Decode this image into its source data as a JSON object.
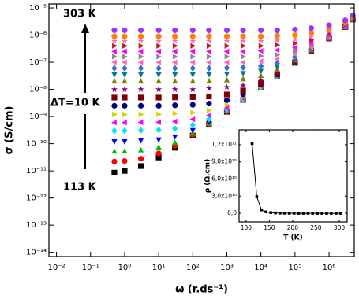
{
  "chart_data": [
    {
      "type": "scatter",
      "xscale": "log",
      "yscale": "log",
      "xlabel": "ω (r.ds⁻¹)",
      "ylabel": "σ (S/cm)",
      "annotations": [
        "303 K",
        "ΔT=10 K",
        "113 K"
      ],
      "xlim": [
        0.006,
        5500000
      ],
      "ylim": [
        7e-15,
        1.4e-05
      ],
      "xticks": [
        {
          "value": 0.01,
          "label": "10⁻²"
        },
        {
          "value": 0.1,
          "label": "10⁻¹"
        },
        {
          "value": 1,
          "label": "10⁰"
        },
        {
          "value": 10,
          "label": "10¹"
        },
        {
          "value": 100,
          "label": "10²"
        },
        {
          "value": 1000,
          "label": "10³"
        },
        {
          "value": 10000,
          "label": "10⁴"
        },
        {
          "value": 100000,
          "label": "10⁵"
        },
        {
          "value": 1000000,
          "label": "10⁶"
        }
      ],
      "yticks": [
        {
          "value": 1e-14,
          "label": "10⁻¹⁴"
        },
        {
          "value": 1e-13,
          "label": "10⁻¹³"
        },
        {
          "value": 1e-12,
          "label": "10⁻¹²"
        },
        {
          "value": 1e-11,
          "label": "10⁻¹¹"
        },
        {
          "value": 1e-10,
          "label": "10⁻¹⁰"
        },
        {
          "value": 1e-09,
          "label": "10⁻⁹"
        },
        {
          "value": 1e-08,
          "label": "10⁻⁸"
        },
        {
          "value": 1e-07,
          "label": "10⁻⁷"
        },
        {
          "value": 1e-06,
          "label": "10⁻⁶"
        },
        {
          "value": 1e-05,
          "label": "10⁻⁵"
        }
      ],
      "x": [
        0.5,
        1,
        3,
        10,
        30,
        100,
        300,
        1000,
        3000,
        10000,
        30000,
        100000,
        300000,
        1000000,
        3000000,
        5000000
      ],
      "series": [
        {
          "color": "#000000",
          "marker": "square",
          "values": [
            8.6e-12,
            1e-11,
            1.5e-11,
            3.1e-11,
            7.1e-11,
            2e-10,
            5.2e-10,
            1.5e-09,
            4.1e-09,
            1.2e-08,
            3.2e-08,
            9.5e-08,
            2.6e-07,
            7.5e-07,
            2e-06,
            3.8e-06
          ]
        },
        {
          "color": "#ff0000",
          "marker": "circle",
          "values": [
            2.2e-11,
            2.3e-11,
            2.8e-11,
            4.4e-11,
            8.4e-11,
            2.1e-10,
            5.3e-10,
            1.5e-09,
            4.1e-09,
            1.2e-08,
            3.2e-08,
            9.5e-08,
            2.6e-07,
            7.5e-07,
            2e-06,
            3.8e-06
          ]
        },
        {
          "color": "#00c000",
          "marker": "triangle-up",
          "values": [
            5.2e-11,
            5.3e-11,
            5.8e-11,
            7.4e-11,
            1.1e-10,
            2.4e-10,
            5.6e-10,
            1.6e-09,
            4.2e-09,
            1.2e-08,
            3.2e-08,
            9.5e-08,
            2.6e-07,
            7.5e-07,
            2e-06,
            3.8e-06
          ]
        },
        {
          "color": "#0000ff",
          "marker": "triangle-down",
          "values": [
            1.2e-10,
            1.2e-10,
            1.3e-10,
            1.4e-10,
            1.8e-10,
            3.1e-10,
            6.3e-10,
            1.6e-09,
            4.2e-09,
            1.2e-08,
            3.2e-08,
            9.5e-08,
            2.6e-07,
            7.5e-07,
            2e-06,
            3.8e-06
          ]
        },
        {
          "color": "#00e5ee",
          "marker": "diamond",
          "values": [
            3e-10,
            3e-10,
            3.1e-10,
            3.2e-10,
            3.6e-10,
            4.9e-10,
            8.1e-10,
            1.8e-09,
            4.4e-09,
            1.2e-08,
            3.2e-08,
            9.5e-08,
            2.6e-07,
            7.5e-07,
            2e-06,
            3.8e-06
          ]
        },
        {
          "color": "#ff00ff",
          "marker": "triangle-left",
          "values": [
            6e-10,
            6e-10,
            6.1e-10,
            6.2e-10,
            6.6e-10,
            7.9e-10,
            1.1e-09,
            2.1e-09,
            4.7e-09,
            1.3e-08,
            3.3e-08,
            9.5e-08,
            2.6e-07,
            7.5e-07,
            2e-06,
            3.8e-06
          ]
        },
        {
          "color": "#d4d400",
          "marker": "triangle-right",
          "values": [
            1.2e-09,
            1.2e-09,
            1.2e-09,
            1.2e-09,
            1.3e-09,
            1.4e-09,
            1.7e-09,
            2.7e-09,
            5.3e-09,
            1.3e-08,
            3.3e-08,
            9.6e-08,
            2.6e-07,
            7.5e-07,
            2e-06,
            3.8e-06
          ]
        },
        {
          "color": "#000080",
          "marker": "circle",
          "values": [
            2.5e-09,
            2.5e-09,
            2.5e-09,
            2.5e-09,
            2.6e-09,
            2.7e-09,
            3e-09,
            4e-09,
            6.6e-09,
            1.5e-08,
            3.5e-08,
            9.8e-08,
            2.6e-07,
            7.5e-07,
            2e-06,
            3.8e-06
          ]
        },
        {
          "color": "#800000",
          "marker": "square",
          "values": [
            5e-09,
            5e-09,
            5e-09,
            5e-09,
            5.1e-09,
            5.2e-09,
            5.5e-09,
            6.5e-09,
            9.1e-09,
            1.7e-08,
            3.7e-08,
            1e-07,
            2.7e-07,
            7.6e-07,
            2e-06,
            3.8e-06
          ]
        },
        {
          "color": "#800080",
          "marker": "star",
          "values": [
            1e-08,
            1e-08,
            1e-08,
            1e-08,
            1e-08,
            1e-08,
            1.1e-08,
            1.2e-08,
            1.4e-08,
            2.2e-08,
            4.2e-08,
            1.1e-07,
            2.7e-07,
            7.6e-07,
            2e-06,
            3.8e-06
          ]
        },
        {
          "color": "#808000",
          "marker": "triangle-up",
          "values": [
            2e-08,
            2e-08,
            2e-08,
            2e-08,
            2e-08,
            2e-08,
            2e-08,
            2.2e-08,
            2.4e-08,
            3.2e-08,
            5.2e-08,
            1.2e-07,
            2.8e-07,
            7.7e-07,
            2e-06,
            3.8e-06
          ]
        },
        {
          "color": "#008080",
          "marker": "triangle-down",
          "values": [
            3.5e-08,
            3.5e-08,
            3.5e-08,
            3.5e-08,
            3.5e-08,
            3.5e-08,
            3.5e-08,
            3.7e-08,
            3.9e-08,
            4.7e-08,
            6.7e-08,
            1.3e-07,
            3e-07,
            7.9e-07,
            2e-06,
            3.8e-06
          ]
        },
        {
          "color": "#4169e1",
          "marker": "diamond",
          "values": [
            6e-08,
            6e-08,
            6e-08,
            6e-08,
            6e-08,
            6e-08,
            6e-08,
            6.2e-08,
            6.4e-08,
            7.2e-08,
            9.2e-08,
            1.6e-07,
            3.2e-07,
            8.1e-07,
            2.1e-06,
            3.9e-06
          ]
        },
        {
          "color": "#ff69b4",
          "marker": "triangle-left",
          "values": [
            1e-07,
            1e-07,
            1e-07,
            1e-07,
            1e-07,
            1e-07,
            1e-07,
            1e-07,
            1e-07,
            1.1e-07,
            1.3e-07,
            2e-07,
            3.6e-07,
            8.5e-07,
            2.1e-06,
            3.9e-06
          ]
        },
        {
          "color": "#888888",
          "marker": "triangle-right",
          "values": [
            1.6e-07,
            1.6e-07,
            1.6e-07,
            1.6e-07,
            1.6e-07,
            1.6e-07,
            1.6e-07,
            1.6e-07,
            1.6e-07,
            1.7e-07,
            1.9e-07,
            2.6e-07,
            4.2e-07,
            9.1e-07,
            2.2e-06,
            4e-06
          ]
        },
        {
          "color": "#ff00ff",
          "marker": "triangle-left",
          "values": [
            2.5e-07,
            2.5e-07,
            2.5e-07,
            2.5e-07,
            2.5e-07,
            2.5e-07,
            2.5e-07,
            2.5e-07,
            2.5e-07,
            2.6e-07,
            2.8e-07,
            3.5e-07,
            5.1e-07,
            1e-06,
            2.3e-06,
            4.1e-06
          ]
        },
        {
          "color": "#b22222",
          "marker": "triangle-right",
          "values": [
            4e-07,
            4e-07,
            4e-07,
            4e-07,
            4e-07,
            4e-07,
            4e-07,
            4e-07,
            4e-07,
            4e-07,
            4.3e-07,
            5e-07,
            6.6e-07,
            1.2e-06,
            2.4e-06,
            4.2e-06
          ]
        },
        {
          "color": "#ff69b4",
          "marker": "star",
          "values": [
            6e-07,
            6e-07,
            6e-07,
            6e-07,
            6e-07,
            6e-07,
            6e-07,
            6e-07,
            6e-07,
            6e-07,
            6.3e-07,
            7e-07,
            8.6e-07,
            1.4e-06,
            2.6e-06,
            4.4e-06
          ]
        },
        {
          "color": "#ff8000",
          "marker": "circle",
          "values": [
            9e-07,
            9e-07,
            9e-07,
            9e-07,
            9e-07,
            9e-07,
            9e-07,
            9e-07,
            9e-07,
            9e-07,
            9.3e-07,
            1e-06,
            1.2e-06,
            1.7e-06,
            2.9e-06,
            4.7e-06
          ]
        },
        {
          "color": "#9933ff",
          "marker": "circle",
          "values": [
            1.5e-06,
            1.5e-06,
            1.5e-06,
            1.5e-06,
            1.5e-06,
            1.5e-06,
            1.5e-06,
            1.5e-06,
            1.5e-06,
            1.5e-06,
            1.5e-06,
            1.6e-06,
            1.8e-06,
            2.3e-06,
            3.5e-06,
            5.3e-06
          ]
        }
      ]
    },
    {
      "type": "line",
      "xlabel": "T (K)",
      "ylabel": "ρ (Ω.cm)",
      "xlim": [
        85,
        317
      ],
      "ylim": [
        -15000000000,
        146000000000
      ],
      "xticks": [
        100,
        150,
        200,
        250,
        300
      ],
      "yticks": [
        {
          "value": 0,
          "label": "0,0"
        },
        {
          "value": 30000000000,
          "label": "3,0x10¹⁰"
        },
        {
          "value": 60000000000,
          "label": "6,0x10¹⁰"
        },
        {
          "value": 90000000000,
          "label": "9,0x10¹⁰"
        },
        {
          "value": 120000000000,
          "label": "1,2x10¹¹"
        }
      ],
      "x": [
        113,
        123,
        133,
        143,
        153,
        163,
        173,
        183,
        193,
        203,
        213,
        223,
        233,
        243,
        253,
        263,
        273,
        283,
        293,
        303
      ],
      "color": "#000000",
      "marker": "square",
      "values": [
        122000000000.0,
        29000000000.0,
        6000000000.0,
        2500000000.0,
        1200000000.0,
        600000000.0,
        300000000.0,
        200000000.0,
        100000000.0,
        50000000.0,
        30000000.0,
        20000000.0,
        10000000.0,
        10000000.0,
        6000000.0,
        4000000.0,
        3000000.0,
        2000000.0,
        1000000.0,
        700000.0
      ]
    }
  ]
}
